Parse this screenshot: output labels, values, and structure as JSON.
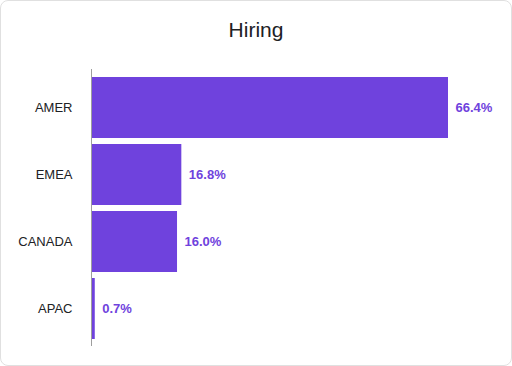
{
  "chart_data": {
    "type": "bar",
    "title": "Hiring",
    "orientation": "horizontal",
    "categories": [
      "AMER",
      "EMEA",
      "CANADA",
      "APAC"
    ],
    "values": [
      66.4,
      16.8,
      16.0,
      0.7
    ],
    "value_labels": [
      "66.4%",
      "16.8%",
      "16.0%",
      "0.7%"
    ],
    "color": "#6f42dd",
    "data_labels": true,
    "tick_labels": "y",
    "grid": false
  }
}
